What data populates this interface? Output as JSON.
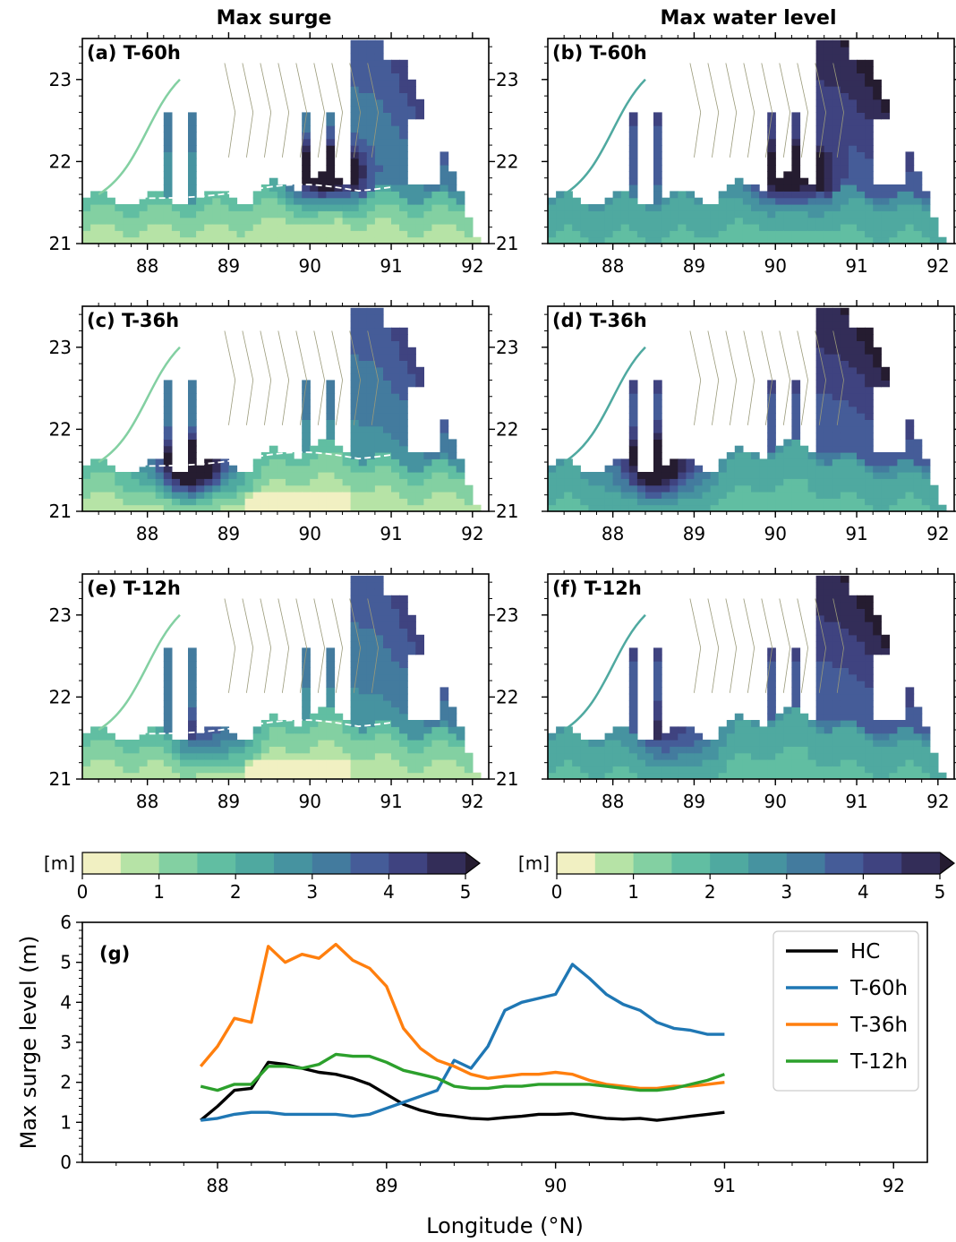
{
  "column_titles": [
    "Max surge",
    "Max water level"
  ],
  "panels": [
    {
      "label": "(a) T-60h",
      "column": 0,
      "row": 0,
      "field": "surge",
      "front": "T-60h"
    },
    {
      "label": "(b) T-60h",
      "column": 1,
      "row": 0,
      "field": "water",
      "front": "T-60h"
    },
    {
      "label": "(c) T-36h",
      "column": 0,
      "row": 1,
      "field": "surge",
      "front": "T-36h"
    },
    {
      "label": "(d) T-36h",
      "column": 1,
      "row": 1,
      "field": "water",
      "front": "T-36h"
    },
    {
      "label": "(e) T-12h",
      "column": 0,
      "row": 2,
      "field": "surge",
      "front": "T-12h"
    },
    {
      "label": "(f) T-12h",
      "column": 1,
      "row": 2,
      "field": "water",
      "front": "T-12h"
    }
  ],
  "map_axes": {
    "lon_ticks": [
      88,
      89,
      90,
      91,
      92
    ],
    "lat_ticks": [
      21,
      22,
      23
    ],
    "xlim": [
      87.2,
      92.2
    ],
    "ylim": [
      21,
      23.5
    ]
  },
  "colorbars": [
    {
      "unit": "[m]",
      "ticks": [
        0,
        1,
        2,
        3,
        4,
        5
      ],
      "levels": [
        0,
        0.5,
        1,
        1.5,
        2,
        2.5,
        3,
        3.5,
        4,
        4.5,
        5
      ],
      "extend": "max"
    },
    {
      "unit": "[m]",
      "ticks": [
        0,
        1,
        2,
        3,
        4,
        5
      ],
      "levels": [
        0,
        0.5,
        1,
        1.5,
        2,
        2.5,
        3,
        3.5,
        4,
        4.5,
        5
      ],
      "extend": "max"
    }
  ],
  "colormap": [
    "#f1f0c2",
    "#b6e3a6",
    "#83d0a2",
    "#61bea2",
    "#4fa9a0",
    "#4693a0",
    "#437b9e",
    "#455c98",
    "#3f4380",
    "#332d58",
    "#251c30"
  ],
  "land_color": "#ffffff",
  "chart_data": [
    {
      "type": "line",
      "panel_label": "(g)",
      "xlabel": "Longitude (°N)",
      "ylabel": "Max surge level (m)",
      "xlim": [
        87.2,
        92.2
      ],
      "ylim": [
        0,
        6
      ],
      "xticks": [
        88,
        89,
        90,
        91,
        92
      ],
      "yticks": [
        0,
        1,
        2,
        3,
        4,
        5,
        6
      ],
      "legend_position": "top-right",
      "x": [
        87.9,
        88.0,
        88.1,
        88.2,
        88.3,
        88.4,
        88.5,
        88.6,
        88.7,
        88.8,
        88.9,
        89.0,
        89.1,
        89.2,
        89.3,
        89.4,
        89.5,
        89.6,
        89.7,
        89.8,
        89.9,
        90.0,
        90.1,
        90.2,
        90.3,
        90.4,
        90.5,
        90.6,
        90.7,
        90.8,
        90.9,
        91.0
      ],
      "series": [
        {
          "name": "HC",
          "color": "#000000",
          "values": [
            1.05,
            1.4,
            1.8,
            1.85,
            2.5,
            2.45,
            2.35,
            2.25,
            2.2,
            2.1,
            1.95,
            1.7,
            1.45,
            1.3,
            1.2,
            1.15,
            1.1,
            1.08,
            1.12,
            1.15,
            1.2,
            1.2,
            1.22,
            1.15,
            1.1,
            1.08,
            1.1,
            1.05,
            1.1,
            1.15,
            1.2,
            1.25
          ]
        },
        {
          "name": "T-60h",
          "color": "#1f77b4",
          "values": [
            1.05,
            1.1,
            1.2,
            1.25,
            1.25,
            1.2,
            1.2,
            1.2,
            1.2,
            1.15,
            1.2,
            1.35,
            1.5,
            1.65,
            1.8,
            2.55,
            2.35,
            2.9,
            3.8,
            4.0,
            4.1,
            4.2,
            4.95,
            4.6,
            4.2,
            3.95,
            3.8,
            3.5,
            3.35,
            3.3,
            3.2,
            3.2
          ]
        },
        {
          "name": "T-36h",
          "color": "#ff7f0e",
          "values": [
            2.4,
            2.9,
            3.6,
            3.5,
            5.4,
            5.0,
            5.2,
            5.1,
            5.45,
            5.05,
            4.85,
            4.4,
            3.35,
            2.85,
            2.55,
            2.4,
            2.2,
            2.1,
            2.15,
            2.2,
            2.2,
            2.25,
            2.2,
            2.05,
            1.95,
            1.9,
            1.85,
            1.85,
            1.9,
            1.9,
            1.95,
            2.0
          ]
        },
        {
          "name": "T-12h",
          "color": "#2ca02c",
          "values": [
            1.9,
            1.8,
            1.95,
            1.95,
            2.4,
            2.4,
            2.35,
            2.45,
            2.7,
            2.65,
            2.65,
            2.5,
            2.3,
            2.2,
            2.1,
            1.9,
            1.85,
            1.85,
            1.9,
            1.9,
            1.95,
            1.95,
            1.95,
            1.95,
            1.9,
            1.85,
            1.8,
            1.8,
            1.85,
            1.95,
            2.05,
            2.2
          ]
        }
      ]
    }
  ]
}
